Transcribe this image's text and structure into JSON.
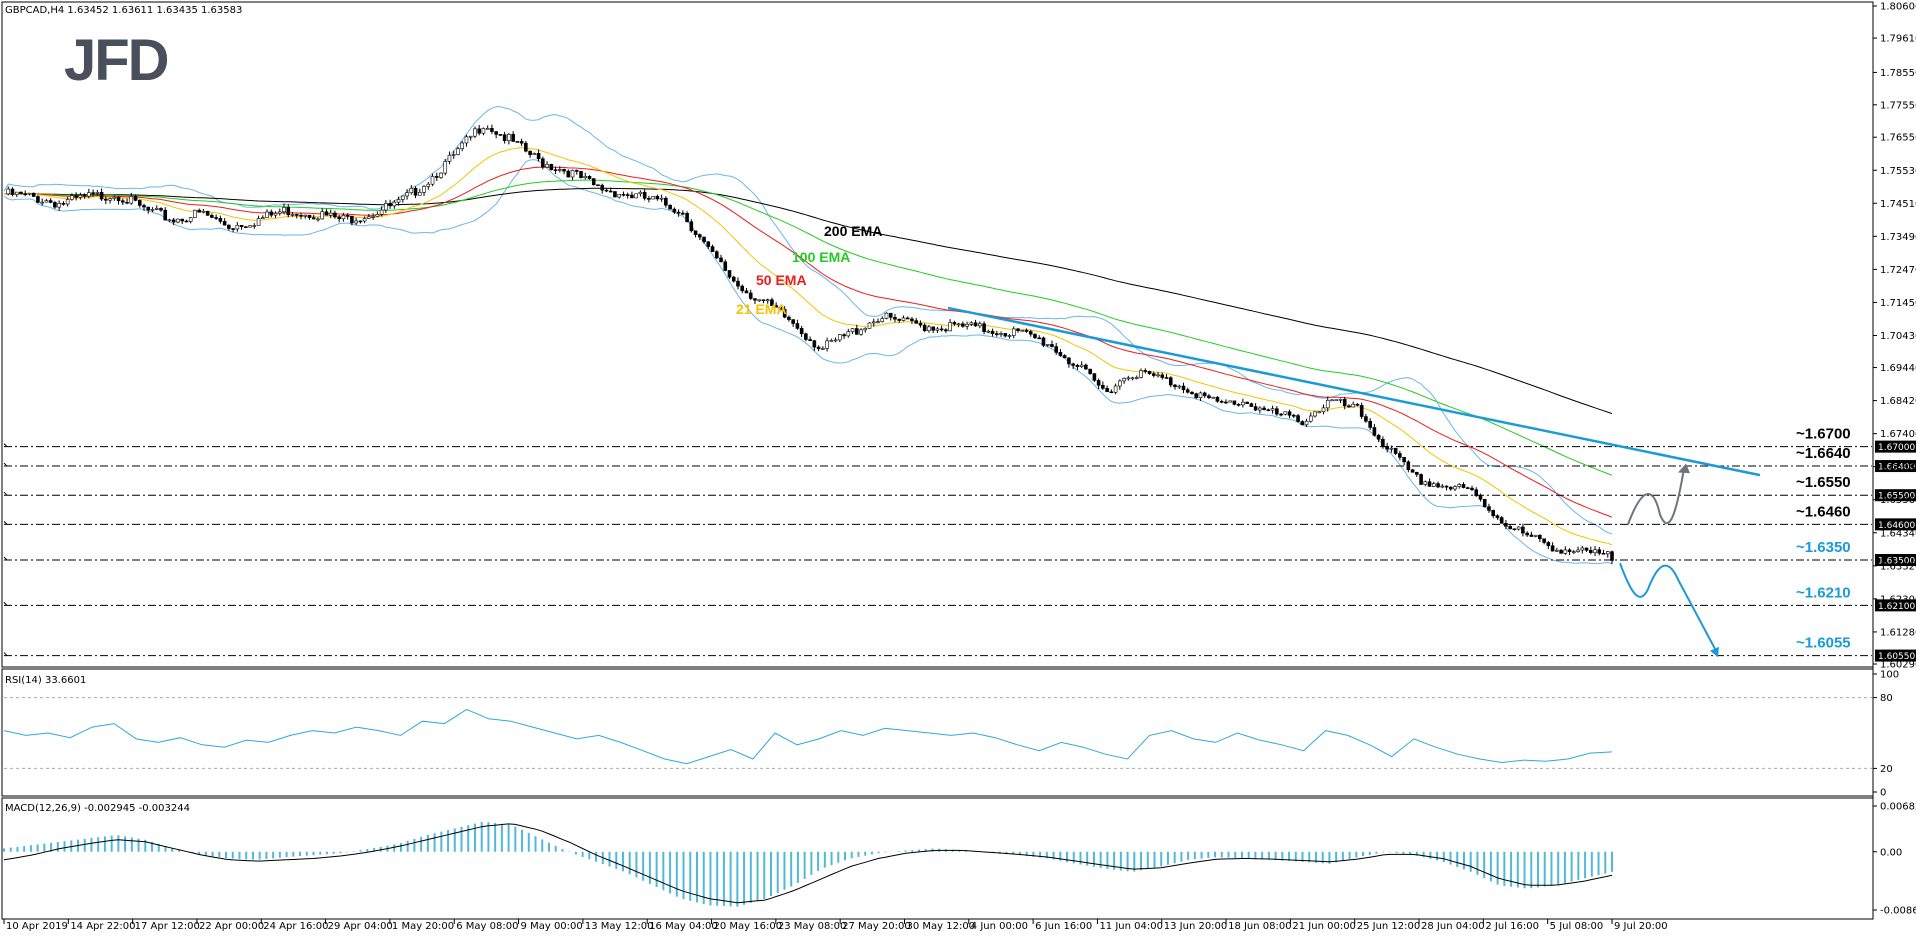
{
  "header": {
    "title": "GBPCAD,H4  1.63452 1.63611 1.63435 1.63583"
  },
  "logo": {
    "text": "JFD"
  },
  "colors": {
    "ema200": "#000000",
    "ema100": "#22cc22",
    "ema50": "#ee1c1c",
    "ema21": "#f5c400",
    "bollinger": "#6cb6e8",
    "trendline": "#1a9ad6",
    "arrow_up": "#6b7280",
    "arrow_down": "#1a9ad6",
    "rsi": "#30a8d8",
    "macd_hist": "#52b8d8"
  },
  "chart_data": [
    {
      "type": "candlestick",
      "symbol": "GBPCAD",
      "timeframe": "H4",
      "ylim": [
        1.6029,
        1.806
      ],
      "y_ticks": [
        "1.80600",
        "1.79610",
        "1.78550",
        "1.77550",
        "1.76550",
        "1.75530",
        "1.74510",
        "1.73490",
        "1.72470",
        "1.71450",
        "1.70430",
        "1.69440",
        "1.68420",
        "1.67400",
        "1.66380",
        "1.65360",
        "1.64340",
        "1.63320",
        "1.62300",
        "1.61280",
        "1.60290"
      ],
      "x_ticks": [
        "10 Apr 2019",
        "14 Apr 22:00",
        "17 Apr 12:00",
        "22 Apr 00:00",
        "24 Apr 16:00",
        "29 Apr 04:00",
        "1 May 20:00",
        "6 May 08:00",
        "9 May 00:00",
        "13 May 12:00",
        "16 May 04:00",
        "20 May 16:00",
        "23 May 08:00",
        "27 May 20:00",
        "30 May 12:00",
        "4 Jun 00:00",
        "6 Jun 16:00",
        "11 Jun 04:00",
        "13 Jun 20:00",
        "18 Jun 08:00",
        "21 Jun 00:00",
        "25 Jun 12:00",
        "28 Jun 04:00",
        "2 Jul 16:00",
        "5 Jul 08:00",
        "9 Jul 20:00"
      ],
      "price_path": [
        1.748,
        1.747,
        1.745,
        1.747,
        1.748,
        1.743,
        1.74,
        1.742,
        1.738,
        1.74,
        1.743,
        1.742,
        1.74,
        1.742,
        1.745,
        1.752,
        1.76,
        1.77,
        1.764,
        1.758,
        1.755,
        1.75,
        1.748,
        1.746,
        1.743,
        1.73,
        1.72,
        1.714,
        1.708,
        1.7,
        1.705,
        1.71,
        1.708,
        1.707,
        1.707,
        1.706,
        1.705,
        1.702,
        1.695,
        1.687,
        1.693,
        1.691,
        1.688,
        1.683,
        1.684,
        1.68,
        1.678,
        1.684,
        1.681,
        1.67,
        1.66,
        1.658,
        1.656,
        1.648,
        1.642,
        1.639,
        1.637,
        1.6358
      ],
      "ema_labels": [
        {
          "name": "200 EMA",
          "value_start": 1.748,
          "value_end": 1.678
        },
        {
          "name": "100 EMA",
          "value_start": 1.749,
          "value_end": 1.655
        },
        {
          "name": "50 EMA",
          "value_start": 1.747,
          "value_end": 1.646
        },
        {
          "name": "21 EMA",
          "value_start": 1.746,
          "value_end": 1.639
        }
      ],
      "levels": [
        {
          "label": "~1.6700",
          "tag": "1.67000",
          "value": 1.67,
          "color": "#000000"
        },
        {
          "label": "~1.6640",
          "tag": "1.66400",
          "value": 1.664,
          "color": "#000000"
        },
        {
          "label": "~1.6550",
          "tag": "1.65500",
          "value": 1.655,
          "color": "#000000"
        },
        {
          "label": "~1.6460",
          "tag": "1.64600",
          "value": 1.646,
          "color": "#000000"
        },
        {
          "label": "~1.6350",
          "tag": "1.63500",
          "value": 1.635,
          "color": "#1a9ad6"
        },
        {
          "label": "~1.6210",
          "tag": "1.62100",
          "value": 1.621,
          "color": "#1a9ad6"
        },
        {
          "label": "~1.6055",
          "tag": "1.60550",
          "value": 1.6055,
          "color": "#1a9ad6"
        }
      ],
      "extra_tick_labels": [
        "1.64340",
        "1.63320"
      ]
    },
    {
      "type": "line",
      "title": "RSI(14) 33.6601",
      "ylim": [
        0,
        100
      ],
      "y_ticks": [
        "100",
        "80",
        "20",
        "0"
      ],
      "levels": [
        80,
        20
      ],
      "values": [
        52,
        48,
        50,
        46,
        55,
        58,
        45,
        42,
        46,
        40,
        38,
        44,
        42,
        48,
        52,
        50,
        55,
        52,
        48,
        60,
        58,
        70,
        62,
        60,
        55,
        50,
        45,
        48,
        42,
        35,
        28,
        24,
        30,
        36,
        28,
        50,
        40,
        45,
        52,
        48,
        54,
        52,
        50,
        48,
        50,
        46,
        40,
        35,
        42,
        38,
        32,
        28,
        48,
        52,
        45,
        42,
        50,
        44,
        40,
        35,
        52,
        48,
        40,
        30,
        45,
        38,
        32,
        28,
        25,
        27,
        26,
        28,
        33,
        34
      ]
    },
    {
      "type": "bar",
      "title": "MACD(12,26,9) -0.002945 -0.003244",
      "ylim": [
        -0.008688,
        0.006825
      ],
      "y_ticks": [
        "0.006825",
        "0.00",
        "-0.008688"
      ],
      "histogram": [
        0.0005,
        0.001,
        0.0015,
        0.002,
        0.0025,
        0.0018,
        0.0005,
        -0.0005,
        -0.001,
        -0.0012,
        -0.0008,
        -0.0005,
        -0.0002,
        0.0005,
        0.0012,
        0.0025,
        0.0035,
        0.0045,
        0.004,
        0.002,
        0.0,
        -0.0015,
        -0.003,
        -0.005,
        -0.007,
        -0.008,
        -0.0082,
        -0.007,
        -0.005,
        -0.0025,
        -0.001,
        -0.0002,
        0.0002,
        0.0005,
        0.0002,
        -0.0002,
        -0.0005,
        -0.001,
        -0.0018,
        -0.0025,
        -0.003,
        -0.0022,
        -0.0012,
        -0.0008,
        -0.001,
        -0.0012,
        -0.0015,
        -0.0018,
        -0.0008,
        0.0,
        -0.0005,
        -0.0015,
        -0.003,
        -0.005,
        -0.0055,
        -0.005,
        -0.004,
        -0.003
      ],
      "signal": [
        -0.0012,
        -0.0005,
        0.0005,
        0.0012,
        0.0018,
        0.0015,
        0.0005,
        -0.0005,
        -0.0012,
        -0.0014,
        -0.0012,
        -0.001,
        -0.0006,
        0.0,
        0.0008,
        0.0018,
        0.0028,
        0.0038,
        0.0042,
        0.0032,
        0.0015,
        -0.0005,
        -0.0022,
        -0.004,
        -0.0058,
        -0.007,
        -0.0076,
        -0.0072,
        -0.0058,
        -0.004,
        -0.0022,
        -0.001,
        -0.0002,
        0.0002,
        0.0002,
        -0.0001,
        -0.0004,
        -0.0008,
        -0.0014,
        -0.002,
        -0.0026,
        -0.0024,
        -0.0017,
        -0.0011,
        -0.001,
        -0.0011,
        -0.0013,
        -0.0015,
        -0.0011,
        -0.0004,
        -0.0004,
        -0.001,
        -0.0022,
        -0.004,
        -0.005,
        -0.005,
        -0.0044,
        -0.0035
      ]
    }
  ]
}
